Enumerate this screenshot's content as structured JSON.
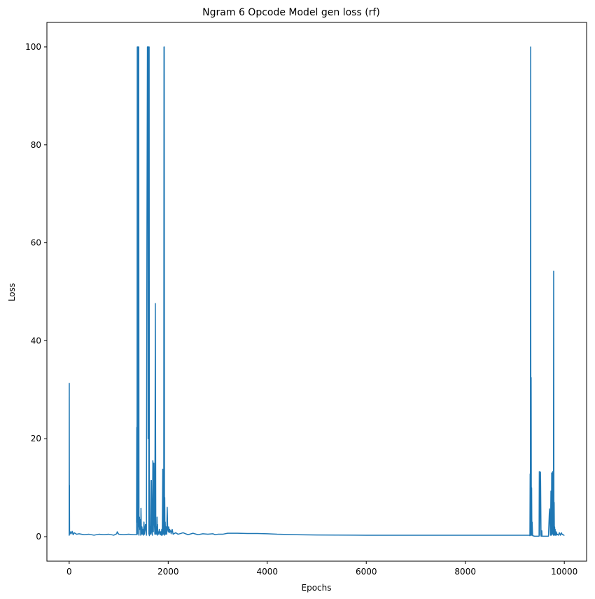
{
  "chart_data": {
    "type": "line",
    "title": "Ngram 6 Opcode Model gen loss (rf)",
    "xlabel": "Epochs",
    "ylabel": "Loss",
    "xlim": [
      -450,
      10450
    ],
    "ylim": [
      -5,
      105
    ],
    "xticks": [
      0,
      2000,
      4000,
      6000,
      8000,
      10000
    ],
    "xtick_labels": [
      "0",
      "2000",
      "4000",
      "6000",
      "8000",
      "10000"
    ],
    "yticks": [
      0,
      20,
      40,
      60,
      80,
      100
    ],
    "ytick_labels": [
      "0",
      "20",
      "40",
      "60",
      "80",
      "100"
    ],
    "grid": false,
    "legend": "none",
    "series_color": "#1f77b4",
    "series": [
      {
        "x": [
          0,
          2,
          4,
          6,
          8,
          12,
          20,
          40,
          60,
          80,
          100,
          150,
          200,
          300,
          400,
          500,
          600,
          700,
          800,
          900,
          960,
          970,
          1000,
          1100,
          1200,
          1300,
          1360,
          1365,
          1370,
          1375,
          1380,
          1385,
          1390,
          1395,
          1400,
          1405,
          1410,
          1420,
          1430,
          1440,
          1445,
          1450,
          1460,
          1470,
          1480,
          1490,
          1500,
          1510,
          1520,
          1540,
          1560,
          1570,
          1580,
          1590,
          1595,
          1600,
          1605,
          1610,
          1615,
          1620,
          1625,
          1630,
          1640,
          1650,
          1660,
          1670,
          1680,
          1690,
          1700,
          1710,
          1720,
          1730,
          1740,
          1750,
          1760,
          1770,
          1775,
          1780,
          1785,
          1790,
          1800,
          1810,
          1820,
          1840,
          1850,
          1860,
          1870,
          1880,
          1890,
          1900,
          1905,
          1910,
          1915,
          1920,
          1925,
          1930,
          1935,
          1940,
          1945,
          1950,
          1955,
          1960,
          1970,
          1980,
          1990,
          2000,
          2010,
          2020,
          2030,
          2040,
          2050,
          2060,
          2080,
          2100,
          2150,
          2200,
          2300,
          2400,
          2500,
          2600,
          2700,
          2800,
          2900,
          2950,
          3000,
          3100,
          3200,
          3400,
          3600,
          3800,
          4000,
          4200,
          4400,
          4600,
          5000,
          6000,
          7000,
          8000,
          9000,
          9280,
          9290,
          9300,
          9305,
          9310,
          9315,
          9320,
          9325,
          9330,
          9335,
          9340,
          9345,
          9350,
          9360,
          9400,
          9450,
          9480,
          9485,
          9490,
          9495,
          9500,
          9520,
          9530,
          9540,
          9545,
          9550,
          9560,
          9600,
          9640,
          9650,
          9660,
          9680,
          9700,
          9720,
          9730,
          9740,
          9745,
          9750,
          9755,
          9760,
          9765,
          9770,
          9775,
          9780,
          9785,
          9790,
          9795,
          9800,
          9805,
          9810,
          9815,
          9820,
          9825,
          9830,
          9835,
          9840,
          9845,
          9850,
          9860,
          9880,
          9900,
          9920,
          9940,
          9960,
          9980,
          10000
        ],
        "y": [
          0.2,
          31.3,
          2.0,
          10.5,
          1.2,
          0.5,
          1.0,
          0.6,
          1.1,
          0.4,
          0.8,
          0.5,
          0.6,
          0.4,
          0.5,
          0.3,
          0.5,
          0.4,
          0.5,
          0.3,
          0.6,
          1.0,
          0.5,
          0.4,
          0.5,
          0.4,
          0.4,
          22.3,
          3.0,
          100,
          100,
          0.5,
          100,
          2.0,
          100,
          100,
          0.3,
          4.0,
          1.5,
          3.5,
          0.3,
          5.8,
          0.5,
          2.0,
          0.5,
          1.5,
          0.3,
          3.0,
          0.5,
          2.5,
          0.3,
          60.3,
          100,
          100,
          20.0,
          100,
          100,
          0.5,
          100,
          0.2,
          11.5,
          0.5,
          2.0,
          0.5,
          11.5,
          1.0,
          0.3,
          15.5,
          1.0,
          15.0,
          3.0,
          0.5,
          47.6,
          0.5,
          2.0,
          0.5,
          4.0,
          0.3,
          2.5,
          0.5,
          1.0,
          0.5,
          1.5,
          0.4,
          1.0,
          0.3,
          1.5,
          0.3,
          13.8,
          0.5,
          2.0,
          0.5,
          100,
          100,
          0.3,
          8.0,
          0.5,
          3.0,
          1.0,
          0.5,
          2.0,
          1.5,
          0.5,
          6.0,
          1.5,
          1.0,
          2.0,
          0.8,
          1.5,
          1.0,
          1.2,
          0.6,
          1.5,
          0.5,
          0.8,
          0.5,
          0.8,
          0.4,
          0.7,
          0.4,
          0.6,
          0.5,
          0.6,
          0.4,
          0.5,
          0.5,
          0.7,
          0.7,
          0.65,
          0.65,
          0.6,
          0.5,
          0.45,
          0.4,
          0.35,
          0.3,
          0.3,
          0.3,
          0.3,
          0.3,
          0.3,
          0.3,
          0.2,
          12.8,
          0.3,
          100,
          0.3,
          32.5,
          0.3,
          10.0,
          0.3,
          3.0,
          0.2,
          0.1,
          0.1,
          0.1,
          0.1,
          0.1,
          13.3,
          0.3,
          13.2,
          0.1,
          0.1,
          1.2,
          0.1,
          0.1,
          0.1,
          0.1,
          0.1,
          0.1,
          0.1,
          5.7,
          0.3,
          9.3,
          0.3,
          13.0,
          0.5,
          12.8,
          1.0,
          13.3,
          0.5,
          12.5,
          0.3,
          54.2,
          0.5,
          7.0,
          0.3,
          2.0,
          0.5,
          1.5,
          0.3,
          1.0,
          0.5,
          1.0,
          0.3,
          0.8,
          0.4,
          0.5,
          0.3,
          0.8,
          0.3,
          0.8,
          0.4,
          0.4,
          0.2
        ]
      }
    ]
  }
}
